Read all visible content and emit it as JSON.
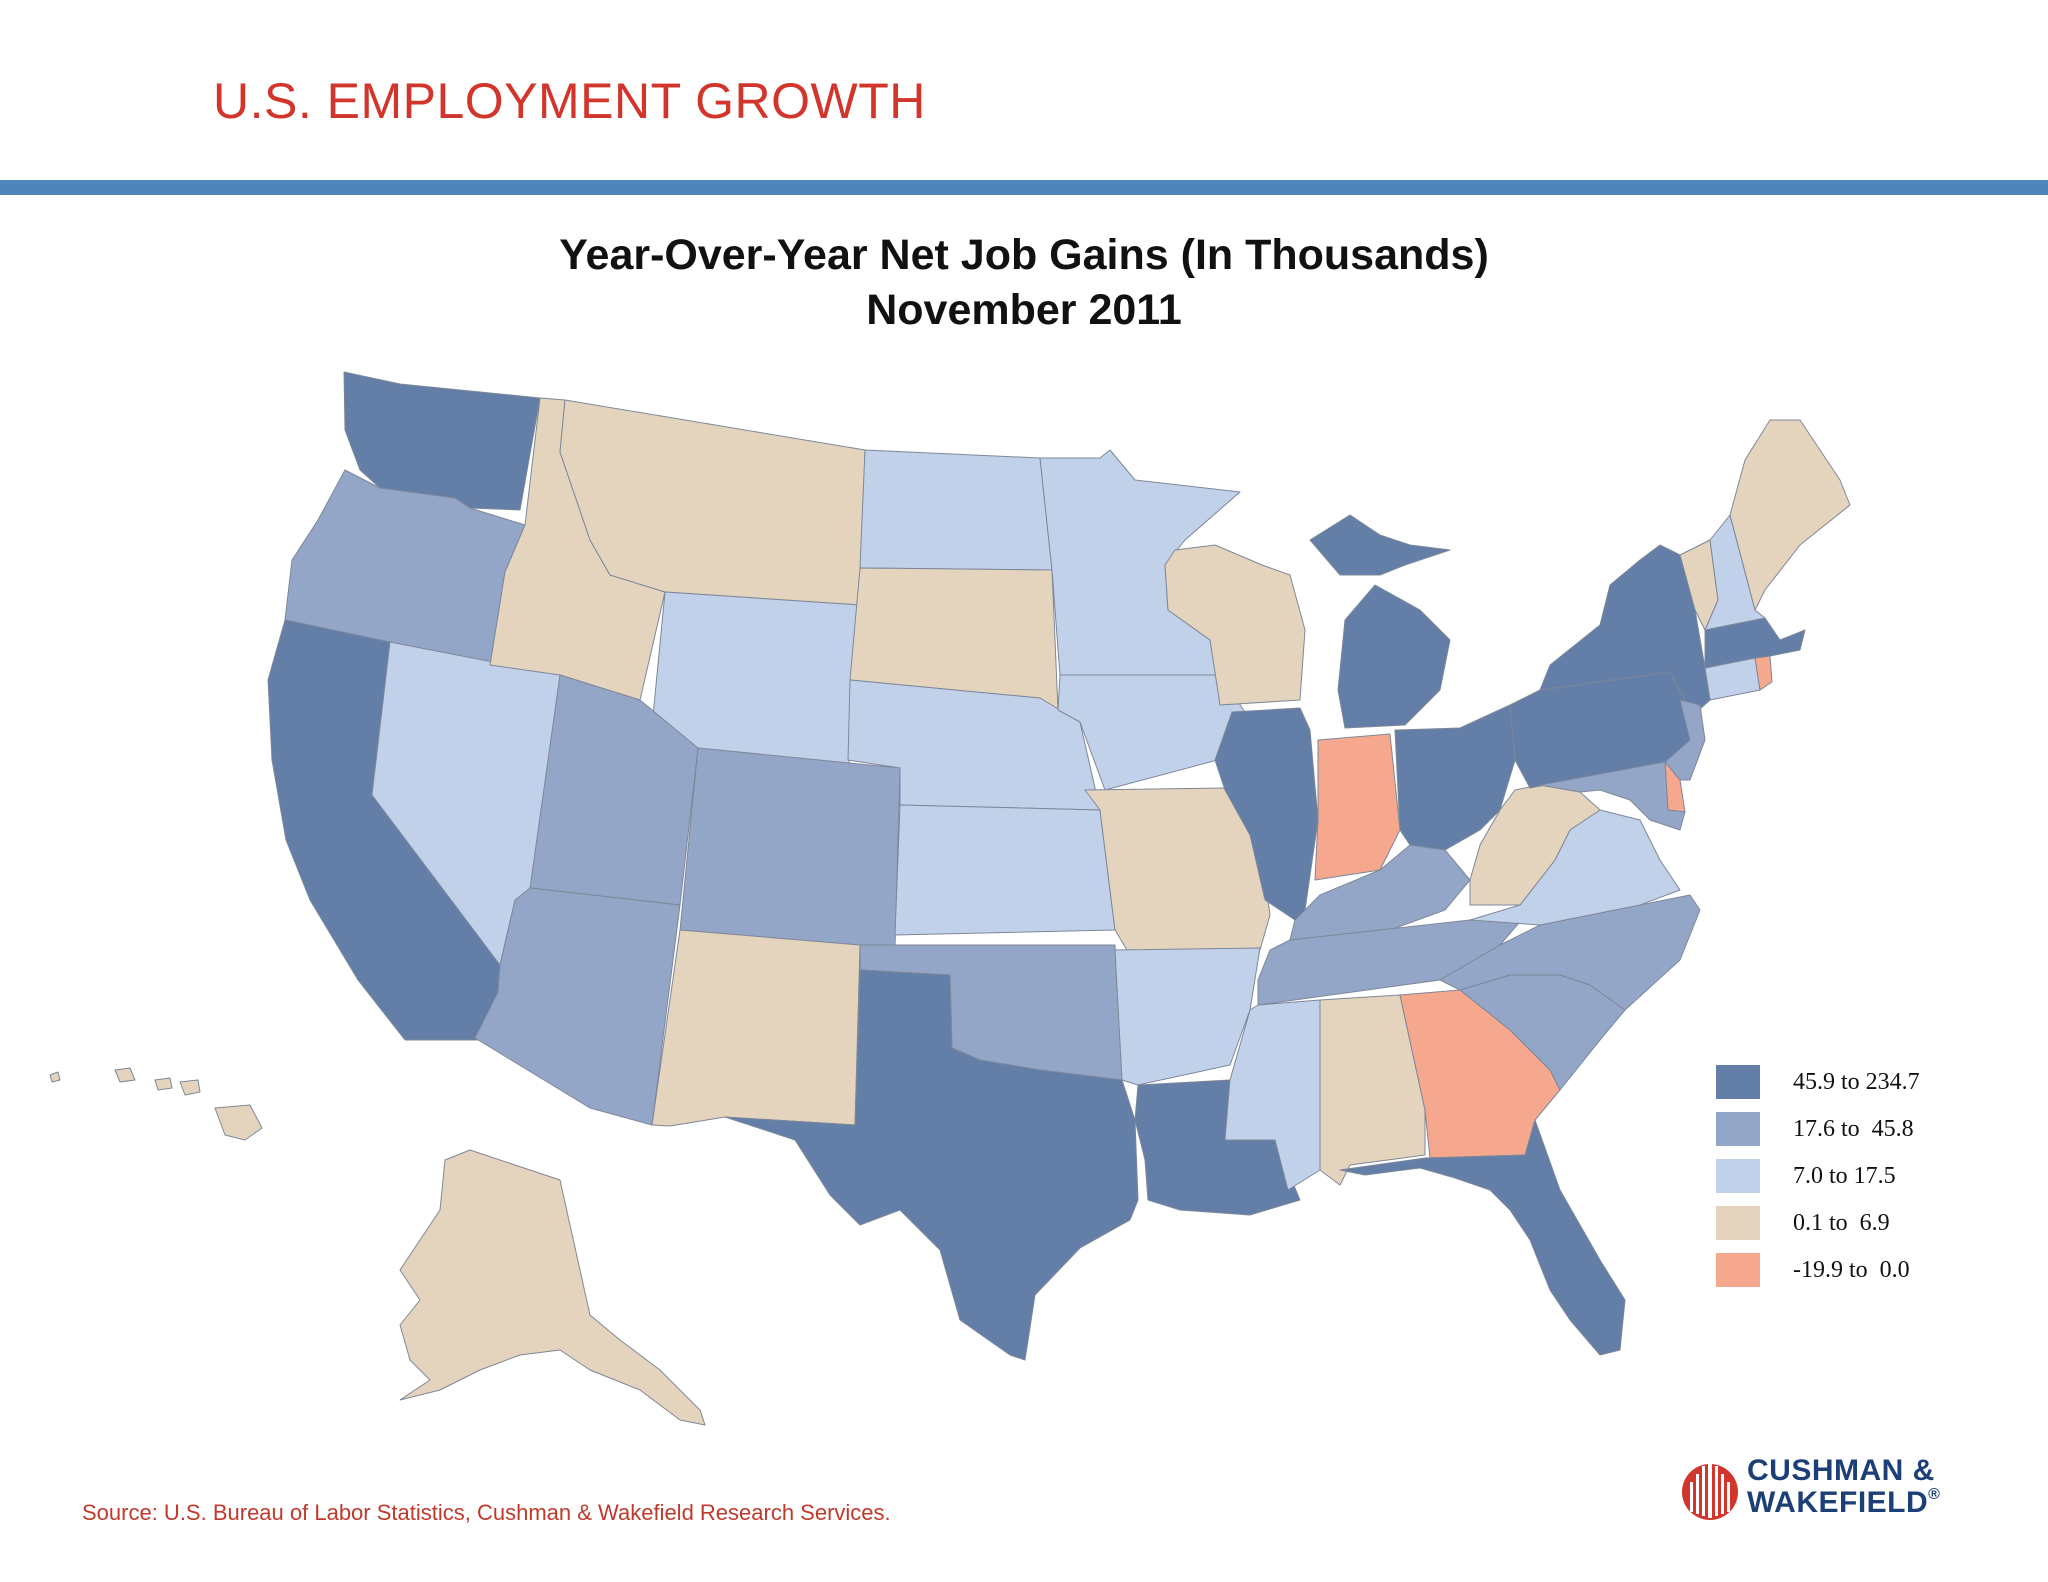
{
  "header": {
    "title": "U.S. EMPLOYMENT GROWTH"
  },
  "chart": {
    "title_line1": "Year-Over-Year Net Job Gains (In Thousands)",
    "title_line2": "November 2011"
  },
  "colors": {
    "tier1": "#637fa8",
    "tier2": "#94a6c8",
    "tier3": "#c2d1ea",
    "tier4": "#e5d4bd",
    "tier5": "#f5a88e",
    "rule": "#4e86bb",
    "accent_red": "#d1352b",
    "logo_blue": "#1d3f77"
  },
  "legend": [
    {
      "label": "45.9 to 234.7",
      "tier": "tier1"
    },
    {
      "label": "17.6 to  45.8",
      "tier": "tier2"
    },
    {
      "label": "7.0 to 17.5",
      "tier": "tier3"
    },
    {
      "label": "0.1 to  6.9",
      "tier": "tier4"
    },
    {
      "label": "-19.9 to  0.0",
      "tier": "tier5"
    }
  ],
  "states": [
    {
      "id": "WA",
      "tier": "tier1"
    },
    {
      "id": "OR",
      "tier": "tier2"
    },
    {
      "id": "CA",
      "tier": "tier1"
    },
    {
      "id": "NV",
      "tier": "tier3"
    },
    {
      "id": "ID",
      "tier": "tier4"
    },
    {
      "id": "MT",
      "tier": "tier4"
    },
    {
      "id": "WY",
      "tier": "tier3"
    },
    {
      "id": "UT",
      "tier": "tier2"
    },
    {
      "id": "AZ",
      "tier": "tier2"
    },
    {
      "id": "CO",
      "tier": "tier2"
    },
    {
      "id": "NM",
      "tier": "tier4"
    },
    {
      "id": "ND",
      "tier": "tier3"
    },
    {
      "id": "SD",
      "tier": "tier4"
    },
    {
      "id": "NE",
      "tier": "tier3"
    },
    {
      "id": "KS",
      "tier": "tier3"
    },
    {
      "id": "OK",
      "tier": "tier2"
    },
    {
      "id": "TX",
      "tier": "tier1"
    },
    {
      "id": "MN",
      "tier": "tier3"
    },
    {
      "id": "IA",
      "tier": "tier3"
    },
    {
      "id": "MO",
      "tier": "tier4"
    },
    {
      "id": "AR",
      "tier": "tier3"
    },
    {
      "id": "LA",
      "tier": "tier1"
    },
    {
      "id": "WI",
      "tier": "tier4"
    },
    {
      "id": "IL",
      "tier": "tier1"
    },
    {
      "id": "MI",
      "tier": "tier1"
    },
    {
      "id": "IN",
      "tier": "tier5"
    },
    {
      "id": "OH",
      "tier": "tier1"
    },
    {
      "id": "KY",
      "tier": "tier2"
    },
    {
      "id": "TN",
      "tier": "tier2"
    },
    {
      "id": "MS",
      "tier": "tier3"
    },
    {
      "id": "AL",
      "tier": "tier4"
    },
    {
      "id": "GA",
      "tier": "tier5"
    },
    {
      "id": "FL",
      "tier": "tier1"
    },
    {
      "id": "SC",
      "tier": "tier2"
    },
    {
      "id": "NC",
      "tier": "tier2"
    },
    {
      "id": "VA",
      "tier": "tier3"
    },
    {
      "id": "WV",
      "tier": "tier4"
    },
    {
      "id": "PA",
      "tier": "tier1"
    },
    {
      "id": "NY",
      "tier": "tier1"
    },
    {
      "id": "NJ",
      "tier": "tier2"
    },
    {
      "id": "DE",
      "tier": "tier5"
    },
    {
      "id": "MD",
      "tier": "tier2"
    },
    {
      "id": "CT",
      "tier": "tier3"
    },
    {
      "id": "RI",
      "tier": "tier5"
    },
    {
      "id": "MA",
      "tier": "tier1"
    },
    {
      "id": "VT",
      "tier": "tier4"
    },
    {
      "id": "NH",
      "tier": "tier3"
    },
    {
      "id": "ME",
      "tier": "tier4"
    },
    {
      "id": "AK",
      "tier": "tier4"
    },
    {
      "id": "HI",
      "tier": "tier4"
    }
  ],
  "source": "Source:  U.S. Bureau of Labor Statistics, Cushman & Wakefield Research Services.",
  "logo": {
    "line1": "CUSHMAN &",
    "line2": "WAKEFIELD",
    "mark": "®"
  }
}
